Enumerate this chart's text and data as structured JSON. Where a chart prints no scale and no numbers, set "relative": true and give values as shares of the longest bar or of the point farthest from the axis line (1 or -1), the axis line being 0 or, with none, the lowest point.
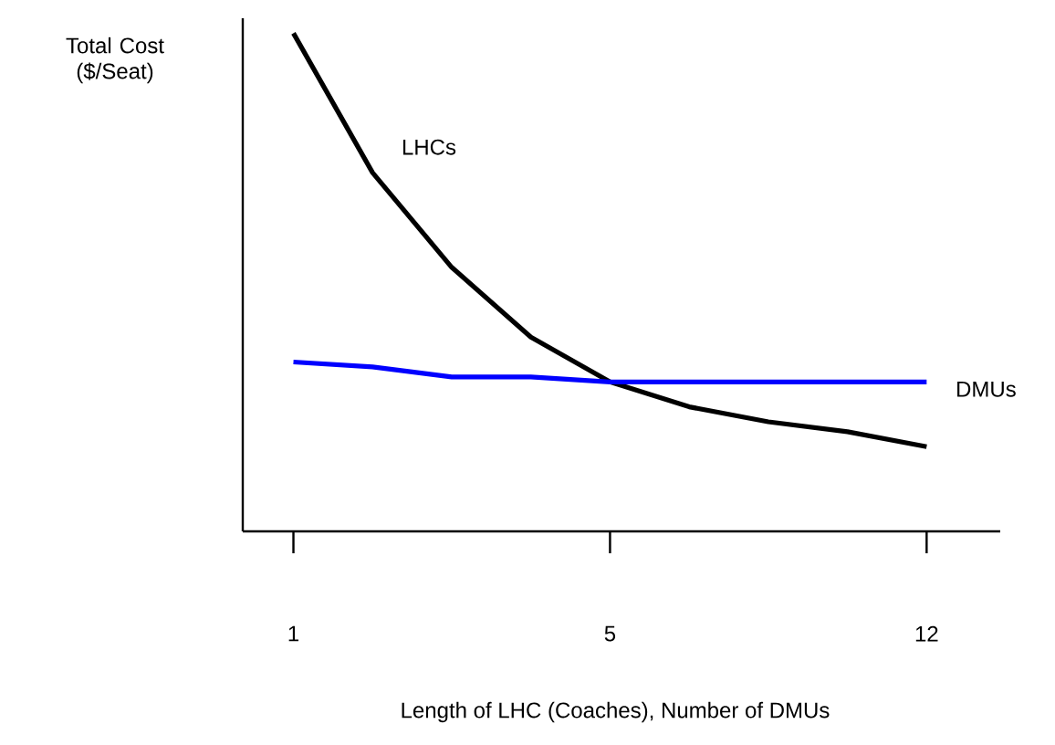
{
  "chart_data": {
    "type": "line",
    "relative": true,
    "ylabel": "Total Cost ($/Seat)",
    "xlabel": "Length of LHC (Coaches), Number of DMUs",
    "tick_labels": "x",
    "marker": "none",
    "categories": [
      "1",
      null,
      null,
      null,
      "5",
      null,
      null,
      null,
      "12"
    ],
    "series": [
      {
        "name": "LHCs",
        "color": "#000000",
        "values": [
          1,
          0.72,
          0.53,
          0.39,
          0.3,
          0.25,
          0.22,
          0.2,
          0.17
        ]
      },
      {
        "name": "DMUs",
        "color": "#0000ff",
        "values": [
          0.34,
          0.33,
          0.31,
          0.31,
          0.3,
          0.3,
          0.3,
          0.3,
          0.3
        ]
      }
    ]
  }
}
